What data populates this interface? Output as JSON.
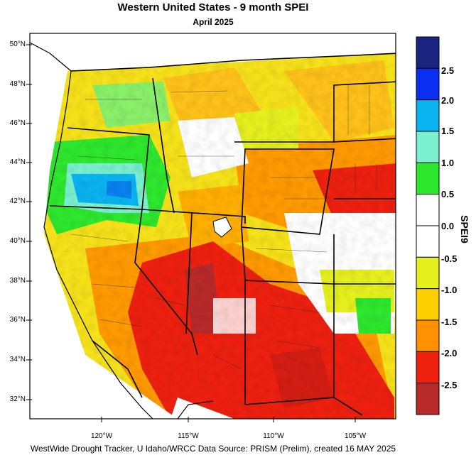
{
  "title": "Western United States - 9 month SPEI",
  "subtitle": "April 2025",
  "footer": "WestWide Drought Tracker, U Idaho/WRCC Data Source: PRISM (Prelim), created 16 MAY 2025",
  "lat_ticks": [
    "50°N",
    "48°N",
    "46°N",
    "44°N",
    "42°N",
    "40°N",
    "38°N",
    "36°N",
    "34°N",
    "32°N"
  ],
  "lon_ticks": [
    "120°W",
    "115°W",
    "110°W",
    "105°W"
  ],
  "colorbar": {
    "title": "SPEI9",
    "labels": [
      "2.5",
      "2.0",
      "1.5",
      "1.0",
      "0.5",
      "0.0",
      "-0.5",
      "-1.0",
      "-1.5",
      "-2.0",
      "-2.5"
    ],
    "colors": [
      "#1a237e",
      "#0a2ff0",
      "#0ab4f0",
      "#7af0d0",
      "#2ee82e",
      "#ffffff",
      "#ffffff",
      "#e6f01e",
      "#ffd000",
      "#ff9000",
      "#ee2010",
      "#b82a2a"
    ]
  }
}
